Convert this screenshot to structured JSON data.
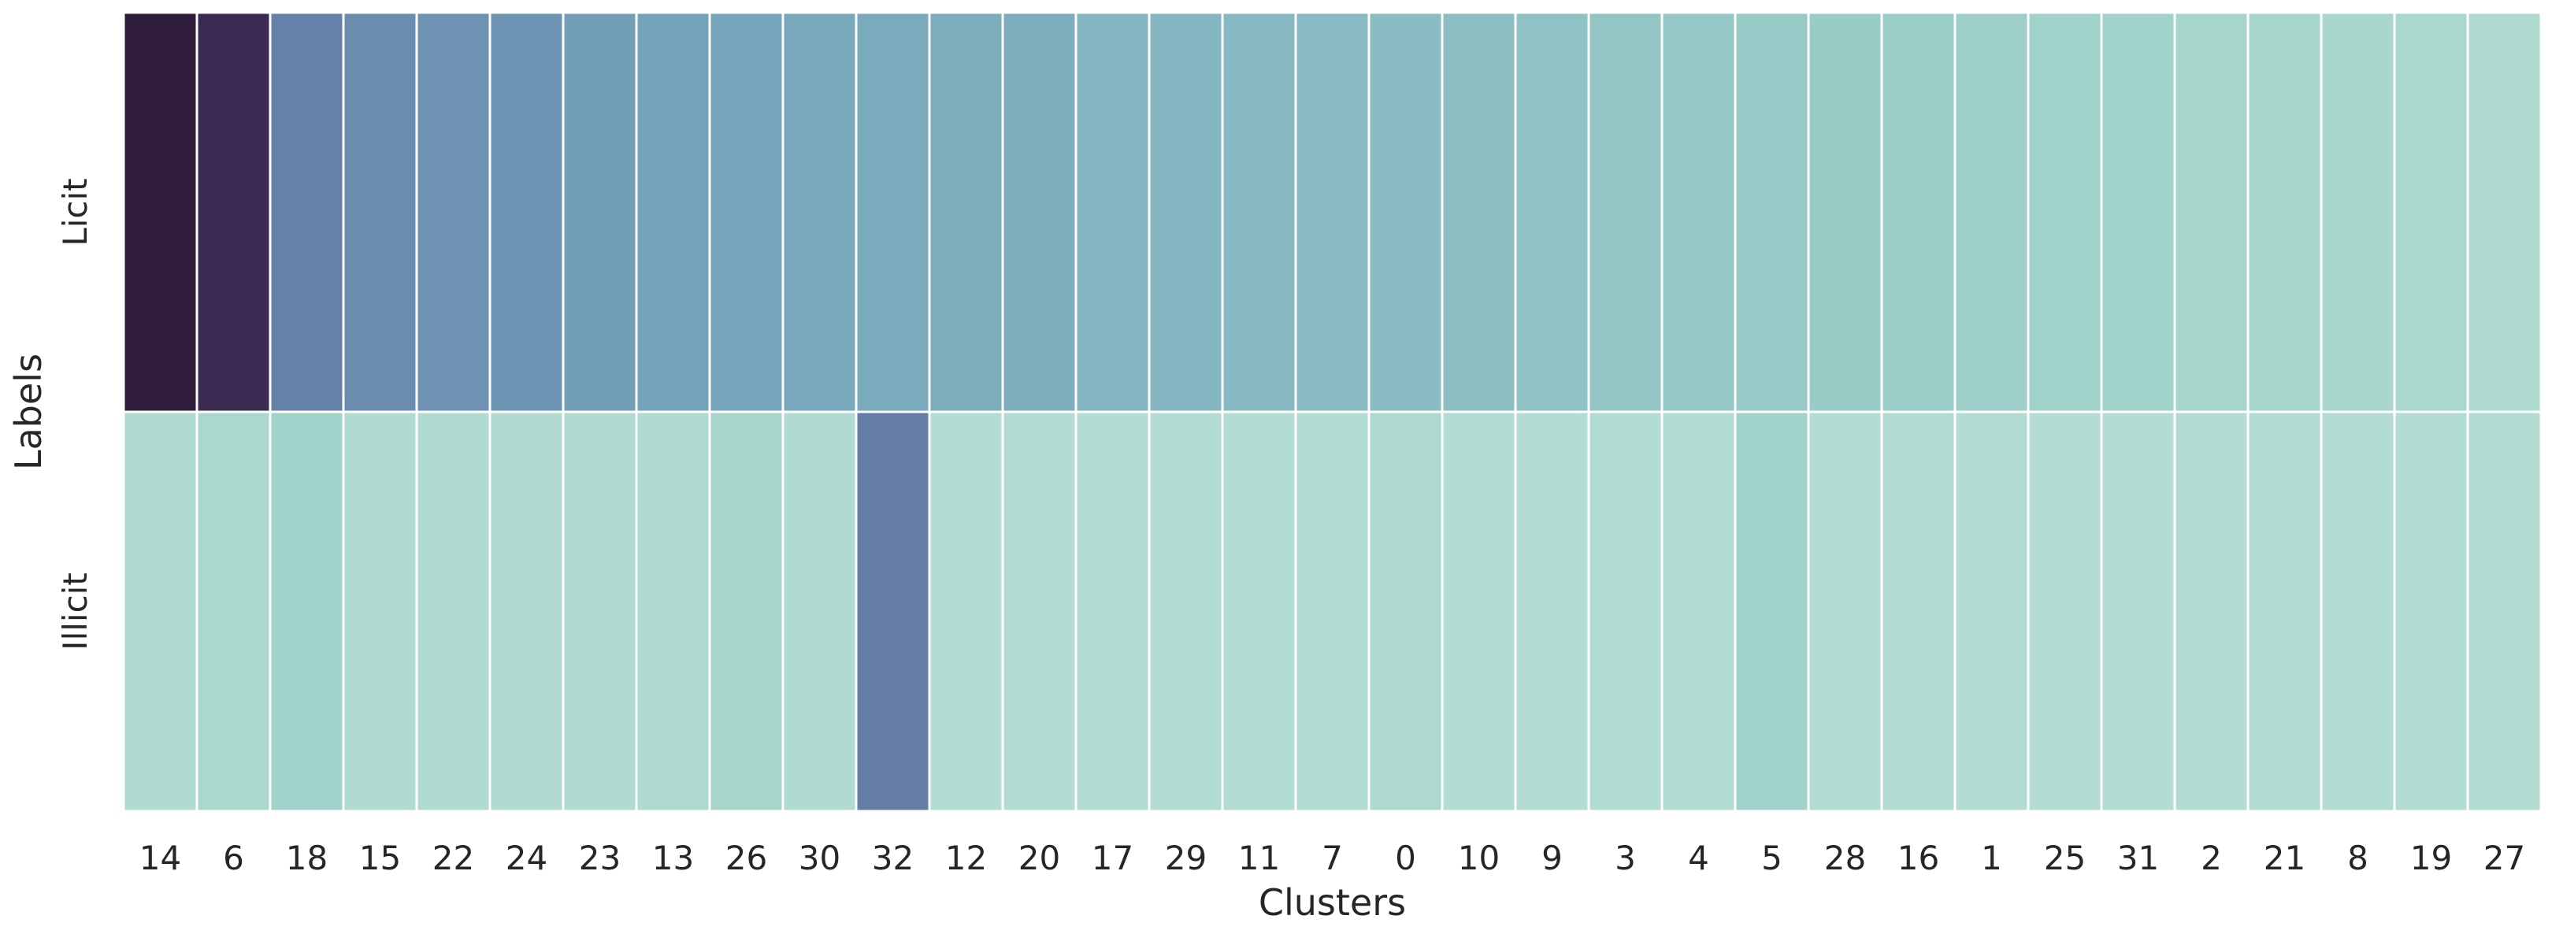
{
  "chart_data": {
    "type": "heatmap",
    "xlabel": "Clusters",
    "ylabel": "Labels",
    "rows": [
      "Licit",
      "Illicit"
    ],
    "columns": [
      "14",
      "6",
      "18",
      "15",
      "22",
      "24",
      "23",
      "13",
      "26",
      "30",
      "32",
      "12",
      "20",
      "17",
      "29",
      "11",
      "7",
      "0",
      "10",
      "9",
      "3",
      "4",
      "5",
      "28",
      "16",
      "1",
      "25",
      "31",
      "2",
      "21",
      "8",
      "19",
      "27"
    ],
    "values": [
      [
        1.0,
        0.93,
        0.62,
        0.58,
        0.56,
        0.55,
        0.52,
        0.5,
        0.49,
        0.47,
        0.45,
        0.44,
        0.43,
        0.38,
        0.37,
        0.36,
        0.35,
        0.33,
        0.32,
        0.3,
        0.28,
        0.27,
        0.25,
        0.24,
        0.23,
        0.22,
        0.2,
        0.19,
        0.17,
        0.16,
        0.15,
        0.14,
        0.12
      ],
      [
        0.11,
        0.14,
        0.19,
        0.11,
        0.11,
        0.11,
        0.11,
        0.12,
        0.17,
        0.11,
        0.63,
        0.1,
        0.1,
        0.1,
        0.1,
        0.1,
        0.1,
        0.13,
        0.1,
        0.1,
        0.1,
        0.1,
        0.2,
        0.1,
        0.1,
        0.1,
        0.1,
        0.1,
        0.1,
        0.1,
        0.1,
        0.1,
        0.1
      ]
    ],
    "colormap": "cubehelix_light_teal_to_dark_purple",
    "colorbar": false,
    "grid_lines_color": "#ffffff"
  }
}
